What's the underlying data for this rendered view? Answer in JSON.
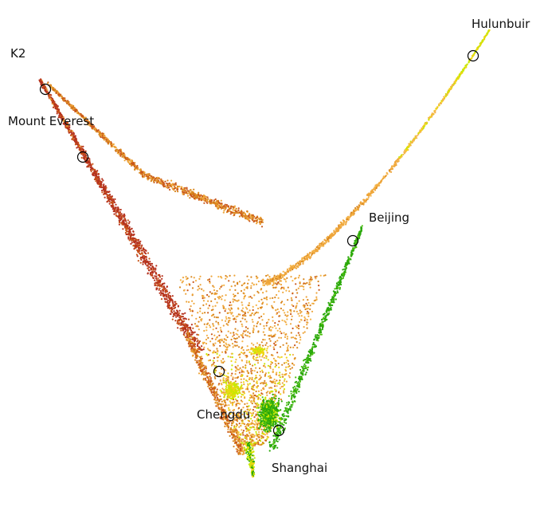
{
  "chart_data": {
    "type": "scatter",
    "title": "",
    "xlabel": "",
    "ylabel": "",
    "axes_visible": false,
    "grid": false,
    "legend": "none",
    "colors": {
      "high_elevation": "#b5321e",
      "mid_rust": "#c9561a",
      "orange": "#d8861f",
      "light_orange": "#eea53a",
      "pale_orange": "#f5b54a",
      "yellow": "#f1d417",
      "yellow_green": "#c9e800",
      "green": "#2aa80a",
      "bright_green": "#4fc010"
    },
    "cloud_description": "Dense point cloud forming a V shape: a dark-red/orange left arm descending from the upper-left, a narrow orange-to-yellow-green right arm rising to the upper-right, and a green-yellow cluster at the bottom apex.",
    "annotations": [
      {
        "label": "K2"
      },
      {
        "label": "Mount Everest"
      },
      {
        "label": "Hulunbuir"
      },
      {
        "label": "Beijing"
      },
      {
        "label": "Chengdu"
      },
      {
        "label": "Shanghai"
      }
    ]
  }
}
